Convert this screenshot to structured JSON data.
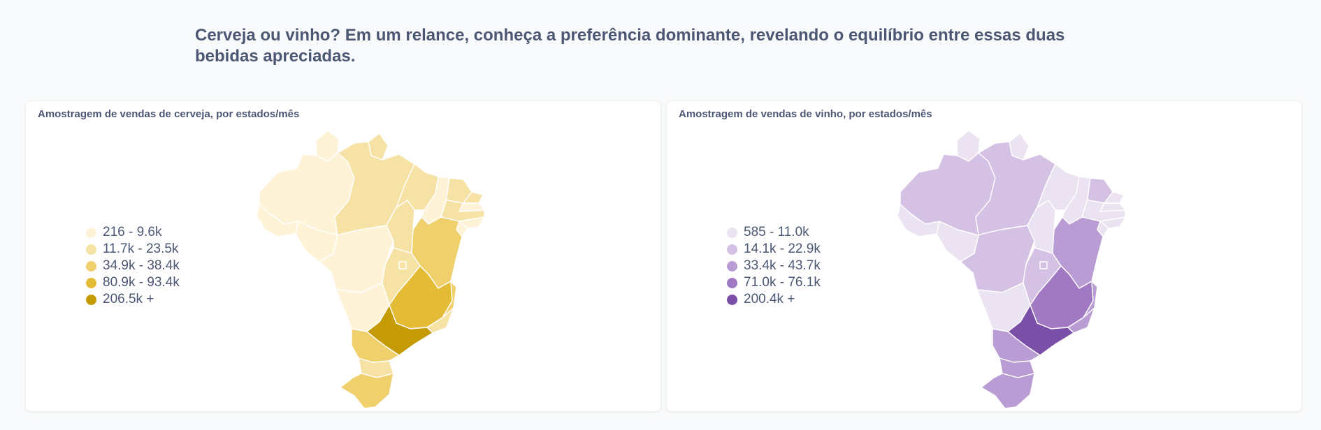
{
  "header": {
    "title": "Cerveja ou vinho? Em um relance, conheça a preferência dominante, revelando o equilíbrio entre essas duas bebidas apreciadas."
  },
  "maps": [
    {
      "title": "Amostragem de vendas de cerveja, por estados/mês",
      "legend": [
        {
          "label": "216 - 9.6k",
          "color": "#fef3d6"
        },
        {
          "label": "11.7k - 23.5k",
          "color": "#f6e2a4"
        },
        {
          "label": "34.9k - 38.4k",
          "color": "#efd06c"
        },
        {
          "label": "80.9k - 93.4k",
          "color": "#e4bb35"
        },
        {
          "label": "206.5k +",
          "color": "#c59b05"
        }
      ],
      "states": {
        "RR": 0,
        "AM": 0,
        "AC": 0,
        "RO": 0,
        "MT": 0,
        "MS": 0,
        "AP": 1,
        "PA": 1,
        "TO": 1,
        "MA": 1,
        "RN": 1,
        "GO": 1,
        "DF": 1,
        "PI": 0,
        "CE": 1,
        "PB": 0,
        "PE": 1,
        "AL": 0,
        "SE": 0,
        "BA": 2,
        "PR": 2,
        "SC": 1,
        "RS": 2,
        "ES": 2,
        "RJ": 1,
        "MG": 3,
        "SP": 4
      }
    },
    {
      "title": "Amostragem de vendas de vinho, por estados/mês",
      "legend": [
        {
          "label": "585 - 11.0k",
          "color": "#ebe2f2"
        },
        {
          "label": "14.1k - 22.9k",
          "color": "#d4c1e4"
        },
        {
          "label": "33.4k - 43.7k",
          "color": "#b99cd4"
        },
        {
          "label": "71.0k - 76.1k",
          "color": "#a079c2"
        },
        {
          "label": "200.4k +",
          "color": "#7a4fa8"
        }
      ],
      "states": {
        "RR": 0,
        "AM": 1,
        "AC": 0,
        "RO": 0,
        "MT": 1,
        "MS": 0,
        "AP": 0,
        "PA": 1,
        "TO": 0,
        "MA": 0,
        "RN": 0,
        "GO": 1,
        "DF": 1,
        "PI": 0,
        "CE": 1,
        "PB": 0,
        "PE": 0,
        "AL": 0,
        "SE": 0,
        "BA": 2,
        "PR": 2,
        "SC": 2,
        "RS": 2,
        "ES": 2,
        "RJ": 2,
        "MG": 3,
        "SP": 4
      }
    }
  ]
}
